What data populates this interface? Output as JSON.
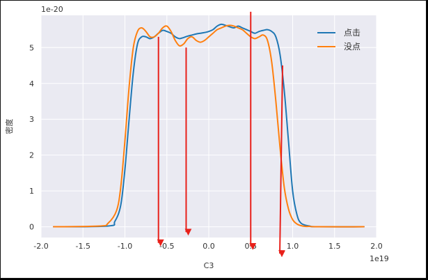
{
  "chart_data": {
    "type": "line",
    "title": "",
    "xlabel": "C3",
    "ylabel": "密度",
    "x_offset_label": "1e19",
    "y_offset_label": "1e-20",
    "xlim": [
      -2.0,
      2.0
    ],
    "ylim": [
      -0.3,
      5.9
    ],
    "x_ticks": [
      -2.0,
      -1.5,
      -1.0,
      -0.5,
      0.0,
      0.5,
      1.0,
      1.5,
      2.0
    ],
    "x_tick_labels": [
      "-2.0",
      "-1.5",
      "-1.0",
      "-0.5",
      "0.0",
      "0.5",
      "1.0",
      "1.5",
      "2.0"
    ],
    "y_ticks": [
      0,
      1,
      2,
      3,
      4,
      5
    ],
    "y_tick_labels": [
      "0",
      "1",
      "2",
      "3",
      "4",
      "5"
    ],
    "grid": true,
    "background": "#eaeaf2",
    "legend": {
      "position": "top-right"
    },
    "series": [
      {
        "name": "点击",
        "color": "#1f77b4",
        "x": [
          -1.85,
          -1.2,
          -1.12,
          -1.05,
          -1.0,
          -0.95,
          -0.9,
          -0.85,
          -0.8,
          -0.75,
          -0.7,
          -0.65,
          -0.6,
          -0.55,
          -0.5,
          -0.45,
          -0.4,
          -0.35,
          -0.3,
          -0.25,
          -0.2,
          -0.15,
          -0.1,
          -0.05,
          0.0,
          0.05,
          0.1,
          0.15,
          0.2,
          0.25,
          0.3,
          0.35,
          0.4,
          0.45,
          0.5,
          0.55,
          0.6,
          0.65,
          0.7,
          0.75,
          0.8,
          0.85,
          0.9,
          0.95,
          1.0,
          1.05,
          1.1,
          1.2,
          1.3,
          1.85
        ],
        "y": [
          0.0,
          0.02,
          0.15,
          0.6,
          1.6,
          3.0,
          4.3,
          5.1,
          5.3,
          5.3,
          5.25,
          5.3,
          5.4,
          5.48,
          5.45,
          5.4,
          5.3,
          5.25,
          5.28,
          5.32,
          5.35,
          5.38,
          5.4,
          5.42,
          5.45,
          5.5,
          5.6,
          5.65,
          5.62,
          5.58,
          5.55,
          5.6,
          5.55,
          5.5,
          5.45,
          5.4,
          5.45,
          5.48,
          5.5,
          5.45,
          5.3,
          4.8,
          3.8,
          2.4,
          1.0,
          0.35,
          0.1,
          0.02,
          0.0,
          0.0
        ]
      },
      {
        "name": "没点",
        "color": "#ff7f0e",
        "x": [
          -1.85,
          -1.3,
          -1.2,
          -1.1,
          -1.05,
          -1.0,
          -0.95,
          -0.9,
          -0.85,
          -0.8,
          -0.75,
          -0.7,
          -0.65,
          -0.6,
          -0.55,
          -0.5,
          -0.45,
          -0.4,
          -0.35,
          -0.3,
          -0.25,
          -0.2,
          -0.15,
          -0.1,
          -0.05,
          0.0,
          0.05,
          0.1,
          0.15,
          0.2,
          0.25,
          0.3,
          0.35,
          0.4,
          0.45,
          0.5,
          0.55,
          0.6,
          0.65,
          0.7,
          0.75,
          0.8,
          0.85,
          0.9,
          0.95,
          1.0,
          1.05,
          1.1,
          1.15,
          1.2,
          1.3,
          1.85
        ],
        "y": [
          0.0,
          0.02,
          0.1,
          0.45,
          1.1,
          2.4,
          3.9,
          5.0,
          5.45,
          5.55,
          5.45,
          5.3,
          5.3,
          5.4,
          5.55,
          5.6,
          5.45,
          5.2,
          5.05,
          5.1,
          5.25,
          5.3,
          5.2,
          5.15,
          5.2,
          5.3,
          5.4,
          5.5,
          5.55,
          5.6,
          5.62,
          5.6,
          5.55,
          5.5,
          5.4,
          5.3,
          5.25,
          5.3,
          5.35,
          5.2,
          4.6,
          3.5,
          2.2,
          1.1,
          0.5,
          0.2,
          0.08,
          0.03,
          0.01,
          0.01,
          0.0,
          0.0
        ]
      }
    ],
    "annotations": {
      "color": "#e8201a",
      "arrows": [
        {
          "x": -0.6,
          "y_from": 5.3,
          "y_to": -0.45
        },
        {
          "x": -0.27,
          "y_from": 5.0,
          "y_to": -0.15
        },
        {
          "x": 0.5,
          "y_from": 6.0,
          "y_to": -0.55
        },
        {
          "x": 0.88,
          "y_from": 4.5,
          "y_to": -0.75
        }
      ]
    }
  }
}
